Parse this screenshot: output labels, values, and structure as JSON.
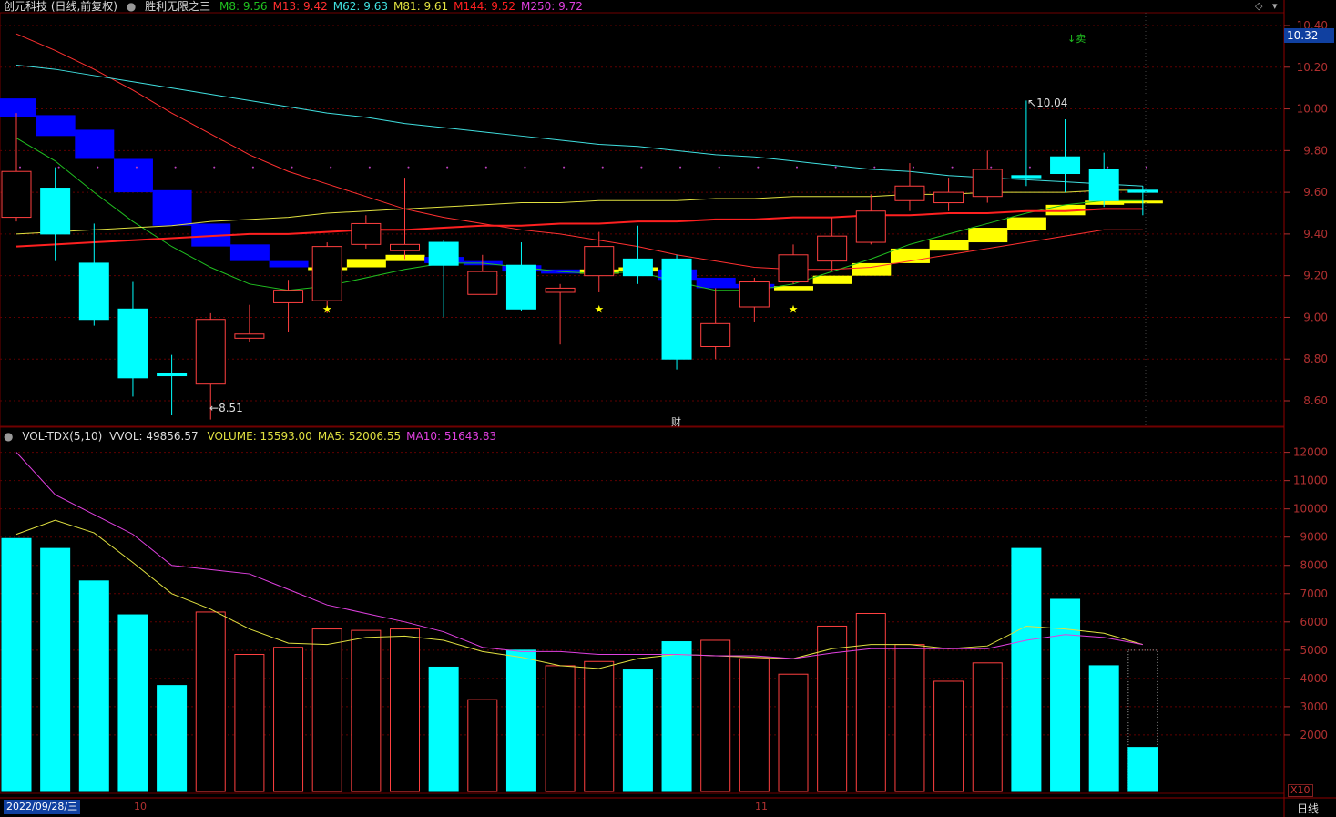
{
  "header": {
    "stock": "创元科技 (日线,前复权)",
    "indicator": "胜利无限之三",
    "ma_items": [
      {
        "label": "M8: 9.56",
        "color": "#20c020"
      },
      {
        "label": "M13: 9.42",
        "color": "#ff3030"
      },
      {
        "label": "M62: 9.63",
        "color": "#40e0e0"
      },
      {
        "label": "M81: 9.61",
        "color": "#e0e040"
      },
      {
        "label": "M144: 9.52",
        "color": "#ff2020"
      },
      {
        "label": "M250: 9.72",
        "color": "#e040e0"
      }
    ]
  },
  "volume_header": {
    "name": "VOL-TDX(5,10)",
    "vvol": "VVOL: 49856.57",
    "items": [
      {
        "label": "VOLUME: 15593.00",
        "color": "#e0e040"
      },
      {
        "label": "MA5: 52006.55",
        "color": "#e0e040"
      },
      {
        "label": "MA10: 51643.83",
        "color": "#e040e0"
      }
    ]
  },
  "current_price": "10.32",
  "date_label": "2022/09/28/三",
  "period_label": "日线",
  "x10_label": "X10",
  "month_labels": [
    "10",
    "11"
  ],
  "annotations": {
    "high": "10.04",
    "low": "8.51",
    "sell": "↓卖",
    "finance": "财"
  },
  "icons": [
    "diamond-icon",
    "down-arrow-icon"
  ],
  "colors": {
    "up": "#ff4040",
    "down": "#00ffff",
    "grid": "#600000",
    "band_bull": "#ffff00",
    "band_bear": "#0000ff"
  },
  "chart_data": [
    {
      "type": "candlestick",
      "title": "",
      "ylim": [
        8.5,
        10.45
      ],
      "y_ticks": [
        "10.40",
        "10.20",
        "10.00",
        "9.80",
        "9.60",
        "9.40",
        "9.20",
        "9.00",
        "8.80",
        "8.60"
      ],
      "candles": [
        {
          "o": 9.48,
          "c": 9.7,
          "h": 9.98,
          "l": 9.46
        },
        {
          "o": 9.62,
          "c": 9.4,
          "h": 9.72,
          "l": 9.27
        },
        {
          "o": 9.26,
          "c": 8.99,
          "h": 9.45,
          "l": 8.96
        },
        {
          "o": 9.04,
          "c": 8.71,
          "h": 9.17,
          "l": 8.62
        },
        {
          "o": 8.73,
          "c": 8.72,
          "h": 8.82,
          "l": 8.53
        },
        {
          "o": 8.68,
          "c": 8.99,
          "h": 9.02,
          "l": 8.51
        },
        {
          "o": 8.9,
          "c": 8.92,
          "h": 9.06,
          "l": 8.88
        },
        {
          "o": 9.07,
          "c": 9.13,
          "h": 9.18,
          "l": 8.93
        },
        {
          "o": 9.08,
          "c": 9.34,
          "h": 9.36,
          "l": 9.02
        },
        {
          "o": 9.35,
          "c": 9.45,
          "h": 9.49,
          "l": 9.33
        },
        {
          "o": 9.32,
          "c": 9.35,
          "h": 9.67,
          "l": 9.28
        },
        {
          "o": 9.36,
          "c": 9.25,
          "h": 9.37,
          "l": 9.0
        },
        {
          "o": 9.11,
          "c": 9.22,
          "h": 9.3,
          "l": 9.11
        },
        {
          "o": 9.25,
          "c": 9.04,
          "h": 9.36,
          "l": 9.03
        },
        {
          "o": 9.12,
          "c": 9.14,
          "h": 9.16,
          "l": 8.87
        },
        {
          "o": 9.2,
          "c": 9.34,
          "h": 9.41,
          "l": 9.12
        },
        {
          "o": 9.28,
          "c": 9.2,
          "h": 9.44,
          "l": 9.16
        },
        {
          "o": 9.28,
          "c": 8.8,
          "h": 9.3,
          "l": 8.75
        },
        {
          "o": 8.86,
          "c": 8.97,
          "h": 9.14,
          "l": 8.8
        },
        {
          "o": 9.05,
          "c": 9.17,
          "h": 9.19,
          "l": 8.98
        },
        {
          "o": 9.17,
          "c": 9.3,
          "h": 9.35,
          "l": 9.16
        },
        {
          "o": 9.27,
          "c": 9.39,
          "h": 9.48,
          "l": 9.22
        },
        {
          "o": 9.36,
          "c": 9.51,
          "h": 9.59,
          "l": 9.35
        },
        {
          "o": 9.56,
          "c": 9.63,
          "h": 9.74,
          "l": 9.51
        },
        {
          "o": 9.55,
          "c": 9.6,
          "h": 9.67,
          "l": 9.51
        },
        {
          "o": 9.58,
          "c": 9.71,
          "h": 9.8,
          "l": 9.55
        },
        {
          "o": 9.68,
          "c": 9.67,
          "h": 10.04,
          "l": 9.63
        },
        {
          "o": 9.77,
          "c": 9.69,
          "h": 9.95,
          "l": 9.6
        },
        {
          "o": 9.71,
          "c": 9.56,
          "h": 9.79,
          "l": 9.53
        },
        {
          "o": 9.61,
          "c": 9.6,
          "h": 9.63,
          "l": 9.49
        }
      ],
      "band": [
        {
          "t": "b",
          "a": 9.96,
          "b": 10.05
        },
        {
          "t": "b",
          "a": 9.87,
          "b": 9.97
        },
        {
          "t": "b",
          "a": 9.76,
          "b": 9.9
        },
        {
          "t": "b",
          "a": 9.6,
          "b": 9.76
        },
        {
          "t": "b",
          "a": 9.44,
          "b": 9.61
        },
        {
          "t": "b",
          "a": 9.34,
          "b": 9.45
        },
        {
          "t": "b",
          "a": 9.27,
          "b": 9.35
        },
        {
          "t": "b",
          "a": 9.24,
          "b": 9.27
        },
        {
          "t": "y",
          "a": 9.23,
          "b": 9.24
        },
        {
          "t": "y",
          "a": 9.24,
          "b": 9.28
        },
        {
          "t": "y",
          "a": 9.27,
          "b": 9.3
        },
        {
          "t": "b",
          "a": 9.26,
          "b": 9.29
        },
        {
          "t": "b",
          "a": 9.25,
          "b": 9.27
        },
        {
          "t": "b",
          "a": 9.22,
          "b": 9.25
        },
        {
          "t": "b",
          "a": 9.21,
          "b": 9.23
        },
        {
          "t": "y",
          "a": 9.21,
          "b": 9.23
        },
        {
          "t": "y",
          "a": 9.22,
          "b": 9.24
        },
        {
          "t": "b",
          "a": 9.18,
          "b": 9.23
        },
        {
          "t": "b",
          "a": 9.14,
          "b": 9.19
        },
        {
          "t": "b",
          "a": 9.14,
          "b": 9.16
        },
        {
          "t": "y",
          "a": 9.13,
          "b": 9.15
        },
        {
          "t": "y",
          "a": 9.16,
          "b": 9.2
        },
        {
          "t": "y",
          "a": 9.2,
          "b": 9.26
        },
        {
          "t": "y",
          "a": 9.26,
          "b": 9.33
        },
        {
          "t": "y",
          "a": 9.32,
          "b": 9.37
        },
        {
          "t": "y",
          "a": 9.36,
          "b": 9.43
        },
        {
          "t": "y",
          "a": 9.42,
          "b": 9.48
        },
        {
          "t": "y",
          "a": 9.49,
          "b": 9.54
        },
        {
          "t": "y",
          "a": 9.54,
          "b": 9.56
        },
        {
          "t": "y",
          "a": 9.55,
          "b": 9.56
        }
      ],
      "lines": [
        {
          "name": "M8",
          "color": "#20c020",
          "values": [
            9.86,
            9.75,
            9.6,
            9.46,
            9.34,
            9.24,
            9.16,
            9.13,
            9.15,
            9.19,
            9.23,
            9.26,
            9.26,
            9.24,
            9.22,
            9.21,
            9.22,
            9.17,
            9.13,
            9.13,
            9.16,
            9.22,
            9.28,
            9.35,
            9.4,
            9.45,
            9.5,
            9.54,
            9.56,
            9.56
          ]
        },
        {
          "name": "M13",
          "color": "#ff3030",
          "values": [
            10.36,
            10.28,
            10.19,
            10.09,
            9.98,
            9.88,
            9.78,
            9.7,
            9.64,
            9.58,
            9.52,
            9.48,
            9.45,
            9.42,
            9.4,
            9.37,
            9.34,
            9.3,
            9.27,
            9.24,
            9.23,
            9.23,
            9.24,
            9.27,
            9.3,
            9.33,
            9.36,
            9.39,
            9.42,
            9.42
          ]
        },
        {
          "name": "M62",
          "color": "#40e0e0",
          "values": [
            10.21,
            10.19,
            10.16,
            10.13,
            10.1,
            10.07,
            10.04,
            10.01,
            9.98,
            9.96,
            9.93,
            9.91,
            9.89,
            9.87,
            9.85,
            9.83,
            9.82,
            9.8,
            9.78,
            9.77,
            9.75,
            9.73,
            9.71,
            9.7,
            9.68,
            9.67,
            9.66,
            9.65,
            9.64,
            9.63
          ]
        },
        {
          "name": "M81",
          "color": "#e0e040",
          "values": [
            9.4,
            9.41,
            9.42,
            9.43,
            9.44,
            9.46,
            9.47,
            9.48,
            9.5,
            9.51,
            9.52,
            9.53,
            9.54,
            9.55,
            9.55,
            9.56,
            9.56,
            9.56,
            9.57,
            9.57,
            9.58,
            9.58,
            9.58,
            9.59,
            9.59,
            9.6,
            9.6,
            9.6,
            9.61,
            9.61
          ]
        },
        {
          "name": "M144",
          "color": "#ff2020",
          "values": [
            9.34,
            9.35,
            9.36,
            9.37,
            9.38,
            9.39,
            9.4,
            9.4,
            9.41,
            9.42,
            9.42,
            9.43,
            9.44,
            9.44,
            9.45,
            9.45,
            9.46,
            9.46,
            9.47,
            9.47,
            9.48,
            9.48,
            9.49,
            9.49,
            9.5,
            9.5,
            9.51,
            9.51,
            9.52,
            9.52
          ]
        }
      ],
      "stars": [
        8,
        15,
        20
      ],
      "dots_y": 9.72
    },
    {
      "type": "bar",
      "title": "",
      "ylim": [
        0,
        12600
      ],
      "y_ticks": [
        "12000",
        "11000",
        "10000",
        "9000",
        "8000",
        "7000",
        "6000",
        "5000",
        "4000",
        "3000",
        "2000"
      ],
      "values": [
        8950,
        8600,
        7450,
        6250,
        3750,
        6350,
        4850,
        5100,
        5750,
        5700,
        5750,
        4400,
        3250,
        5000,
        4450,
        4600,
        4300,
        5300,
        5350,
        4700,
        4150,
        5850,
        6300,
        5200,
        3900,
        4550,
        8600,
        6800,
        4450,
        1559
      ],
      "up": [
        0,
        0,
        0,
        0,
        0,
        1,
        1,
        1,
        1,
        1,
        1,
        0,
        1,
        0,
        1,
        1,
        0,
        0,
        1,
        1,
        1,
        1,
        1,
        1,
        1,
        1,
        0,
        0,
        0,
        0
      ],
      "series": [
        {
          "name": "MA5",
          "color": "#e0e040",
          "values": [
            9100,
            9600,
            9150,
            8100,
            7000,
            6450,
            5750,
            5250,
            5200,
            5450,
            5500,
            5350,
            4950,
            4750,
            4450,
            4350,
            4700,
            4850,
            4800,
            4750,
            4700,
            5050,
            5200,
            5200,
            5050,
            5150,
            5850,
            5750,
            5600,
            5200
          ]
        },
        {
          "name": "MA10",
          "color": "#e040e0",
          "values": [
            12000,
            10500,
            9800,
            9100,
            8000,
            7850,
            7700,
            7150,
            6600,
            6300,
            6000,
            5650,
            5100,
            4950,
            4950,
            4850,
            4850,
            4850,
            4800,
            4800,
            4700,
            4900,
            5050,
            5050,
            5050,
            5050,
            5350,
            5550,
            5450,
            5200
          ]
        }
      ]
    }
  ]
}
